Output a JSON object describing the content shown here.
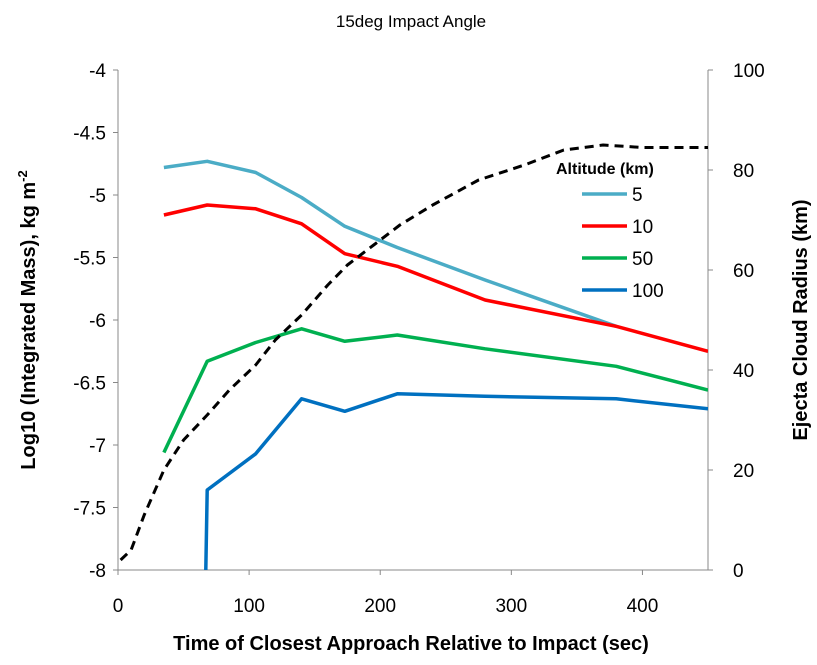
{
  "chart_data": {
    "type": "line",
    "title": "15deg Impact Angle",
    "xlabel": "Time of Closest Approach Relative to Impact (sec)",
    "ylabel_left": {
      "main": "Log10 (Integrated Mass), kg m",
      "superscript": "-2"
    },
    "ylabel_right": "Ejecta Cloud Radius (km)",
    "xlim": [
      0,
      450
    ],
    "ylim_left": [
      -8,
      -4
    ],
    "ylim_right": [
      0,
      100
    ],
    "x_ticks": [
      "0",
      "100",
      "200",
      "300",
      "400"
    ],
    "y_left_ticks": [
      "-4",
      "-4.5",
      "-5",
      "-5.5",
      "-6",
      "-6.5",
      "-7",
      "-7.5",
      "-8"
    ],
    "y_right_ticks": [
      "100",
      "80",
      "60",
      "40",
      "20",
      "0"
    ],
    "grid": false,
    "legend": {
      "title": "Altitude (km)",
      "placement": "top-right"
    },
    "series": [
      {
        "name": "5",
        "axis": "left",
        "color": "#4BACC6",
        "x": [
          35,
          68,
          105,
          140,
          173,
          213,
          280,
          380
        ],
        "y": [
          -4.78,
          -4.73,
          -4.82,
          -5.02,
          -5.25,
          -5.42,
          -5.68,
          -6.05
        ]
      },
      {
        "name": "10",
        "axis": "left",
        "color": "#FF0000",
        "x": [
          35,
          68,
          105,
          140,
          173,
          213,
          280,
          380,
          450
        ],
        "y": [
          -5.16,
          -5.08,
          -5.11,
          -5.23,
          -5.47,
          -5.57,
          -5.84,
          -6.05,
          -6.25
        ]
      },
      {
        "name": "50",
        "axis": "left",
        "color": "#00B050",
        "x": [
          35,
          68,
          105,
          140,
          173,
          213,
          280,
          380,
          450
        ],
        "y": [
          -7.06,
          -6.33,
          -6.18,
          -6.07,
          -6.17,
          -6.12,
          -6.23,
          -6.37,
          -6.56
        ]
      },
      {
        "name": "100",
        "axis": "left",
        "color": "#0070C0",
        "x": [
          67,
          68,
          105,
          140,
          173,
          213,
          280,
          380,
          450
        ],
        "y": [
          -8.0,
          -7.36,
          -7.07,
          -6.63,
          -6.73,
          -6.59,
          -6.61,
          -6.63,
          -6.71
        ]
      },
      {
        "axis": "right",
        "color": "#000000",
        "dash": true,
        "x": [
          2,
          10,
          20,
          35,
          50,
          68,
          85,
          105,
          120,
          140,
          160,
          175,
          195,
          215,
          240,
          275,
          310,
          340,
          370,
          400,
          430,
          450
        ],
        "y": [
          2,
          4,
          11,
          20,
          26,
          31,
          36,
          41,
          46,
          51,
          57,
          61,
          65,
          69,
          73,
          78,
          81,
          84,
          85,
          84.5,
          84.5,
          84.5
        ]
      }
    ]
  }
}
